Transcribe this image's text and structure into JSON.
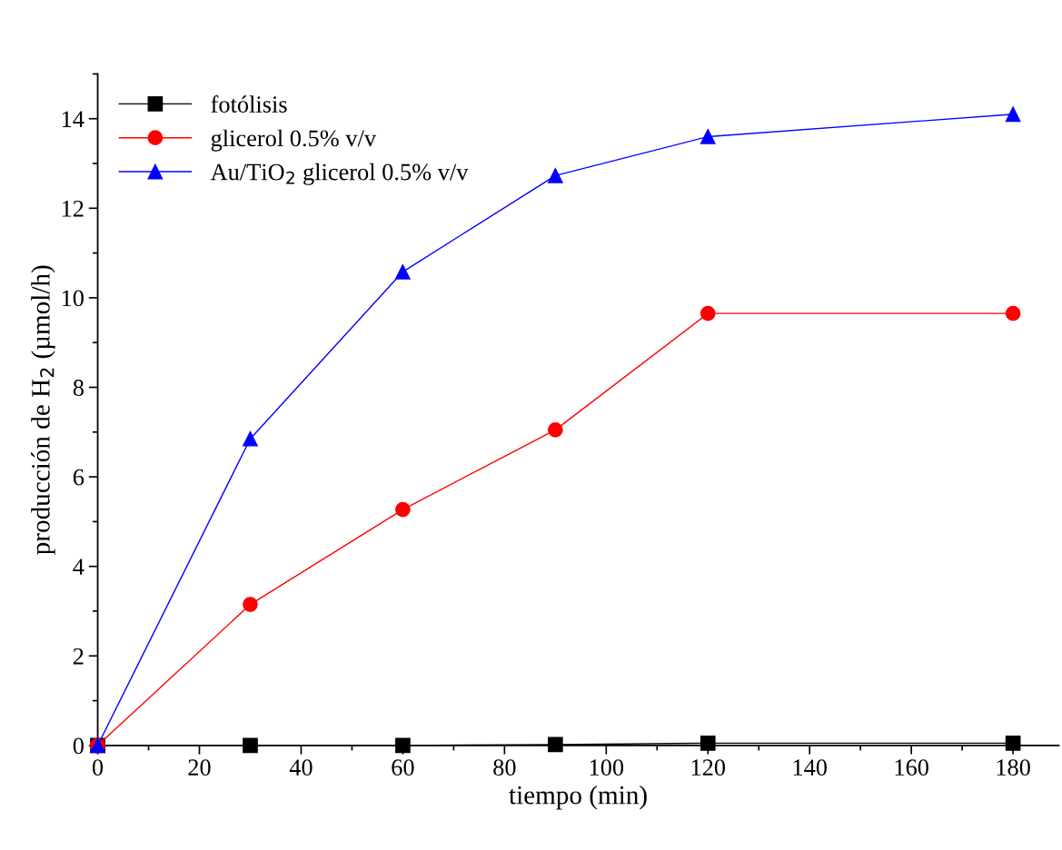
{
  "chart_data": {
    "type": "line",
    "xlabel": "tiempo (min)",
    "ylabel": "producción de H$_{2}$ (µmol/h)",
    "x": [
      0,
      30,
      60,
      90,
      120,
      180
    ],
    "series": [
      {
        "name": "fotólisis",
        "color": "#000000",
        "marker": "square",
        "values": [
          0,
          0,
          0,
          0.02,
          0.05,
          0.05
        ]
      },
      {
        "name": "glicerol 0.5% v/v",
        "color": "#ff0000",
        "marker": "circle",
        "values": [
          0,
          3.15,
          5.27,
          7.05,
          9.65,
          9.65
        ]
      },
      {
        "name": "Au/TiO$_{2}$ glicerol 0.5% v/v",
        "color": "#0000ff",
        "marker": "triangle",
        "values": [
          0,
          6.85,
          10.58,
          12.73,
          13.6,
          14.1
        ]
      }
    ],
    "xlim": [
      0,
      189
    ],
    "xticks": [
      0,
      20,
      40,
      60,
      80,
      100,
      120,
      140,
      160,
      180
    ],
    "ylim": [
      0,
      15
    ],
    "yticks": [
      0,
      2,
      4,
      6,
      8,
      10,
      12,
      14
    ],
    "grid": false,
    "legend": "top left",
    "line_style": "solid"
  }
}
